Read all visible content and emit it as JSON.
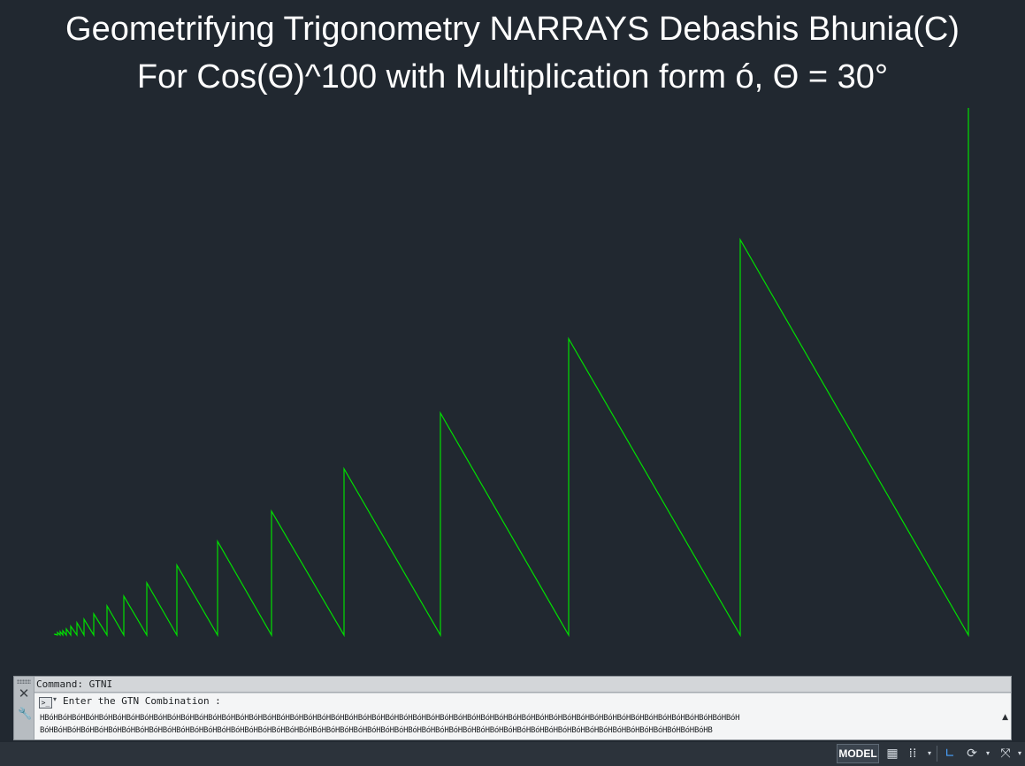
{
  "canvas": {
    "title_line1": "Geometrifying Trigonometry NARRAYS Debashis Bhunia(C)",
    "title_line2": "For Cos(Θ)^100 with Multiplication form ó, Θ = 30°",
    "line_color": "#00e000",
    "background_color": "#212830"
  },
  "command_window": {
    "history_text": "Command: GTNI",
    "prompt_icon": "command-prompt-icon",
    "prompt_text": "Enter the GTN Combination :",
    "combination_line1": "HBóHBóHBóHBóHBóHBóHBóHBóHBóHBóHBóHBóHBóHBóHBóHBóHBóHBóHBóHBóHBóHBóHBóHBóHBóHBóHBóHBóHBóHBóHBóHBóHBóHBóHBóHBóHBóHBóHBóHBóHBóHBóHBóHBóHBóHBóHBóHBóHBóHBóHBóH",
    "combination_line2": "BóHBóHBóHBóHBóHBóHBóHBóHBóHBóHBóHBóHBóHBóHBóHBóHBóHBóHBóHBóHBóHBóHBóHBóHBóHBóHBóHBóHBóHBóHBóHBóHBóHBóHBóHBóHBóHBóHBóHBóHBóHBóHBóHBóHBóHBóHBóHBóHBóHB"
  },
  "status_bar": {
    "model_label": "MODEL",
    "icons": [
      "grid-icon",
      "snap-icon",
      "ortho-icon",
      "polar-icon",
      "object-snap-icon"
    ]
  }
}
